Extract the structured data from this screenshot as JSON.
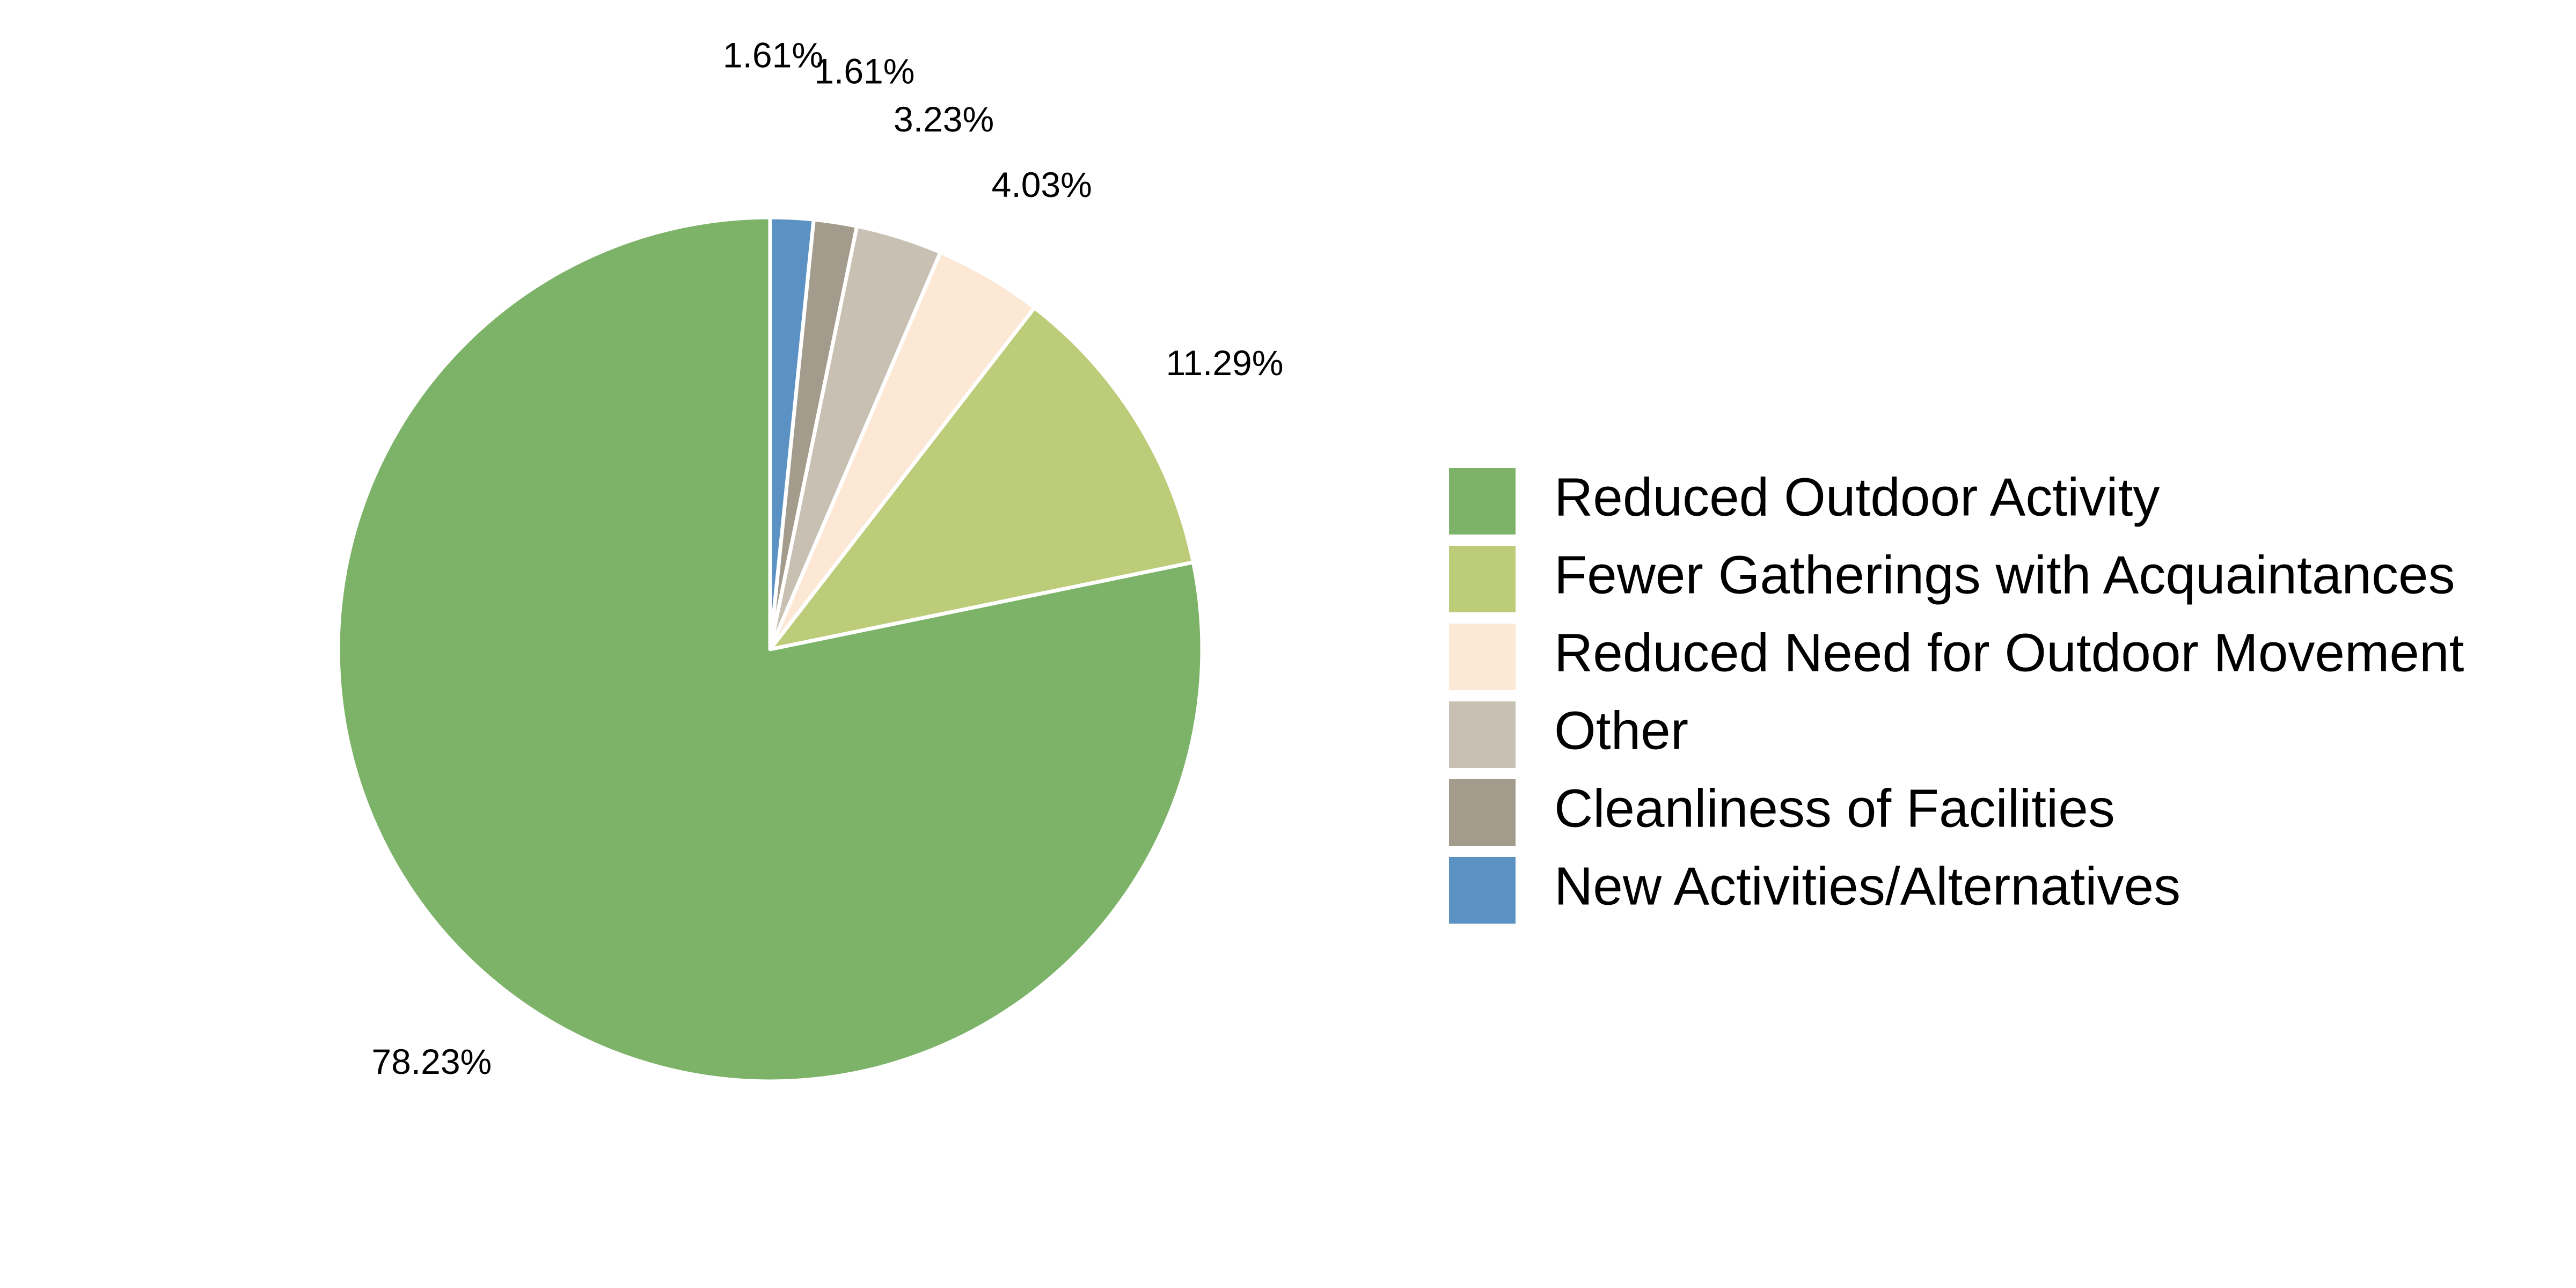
{
  "chart_data": {
    "type": "pie",
    "title": "",
    "start_angle": "top (12 o'clock)",
    "direction": "clockwise",
    "legend_position": "right",
    "slices": [
      {
        "name": "New Activities/Alternatives",
        "value": 1.61,
        "label": "1.61%",
        "color": "#5b92c3"
      },
      {
        "name": "Cleanliness of Facilities",
        "value": 1.61,
        "label": "1.61%",
        "color": "#a39b8b"
      },
      {
        "name": "Other",
        "value": 3.23,
        "label": "3.23%",
        "color": "#c8c1b3"
      },
      {
        "name": "Reduced Need for Outdoor Movement",
        "value": 4.03,
        "label": "4.03%",
        "color": "#fce8d5"
      },
      {
        "name": "Fewer Gatherings with Acquaintances",
        "value": 11.29,
        "label": "11.29%",
        "color": "#bdcc79"
      },
      {
        "name": "Reduced Outdoor Activity",
        "value": 78.23,
        "label": "78.23%",
        "color": "#7db369"
      }
    ],
    "legend_order": [
      "Reduced Outdoor Activity",
      "Fewer Gatherings with Acquaintances",
      "Reduced Need for Outdoor Movement",
      "Other",
      "Cleanliness of Facilities",
      "New Activities/Alternatives"
    ]
  }
}
